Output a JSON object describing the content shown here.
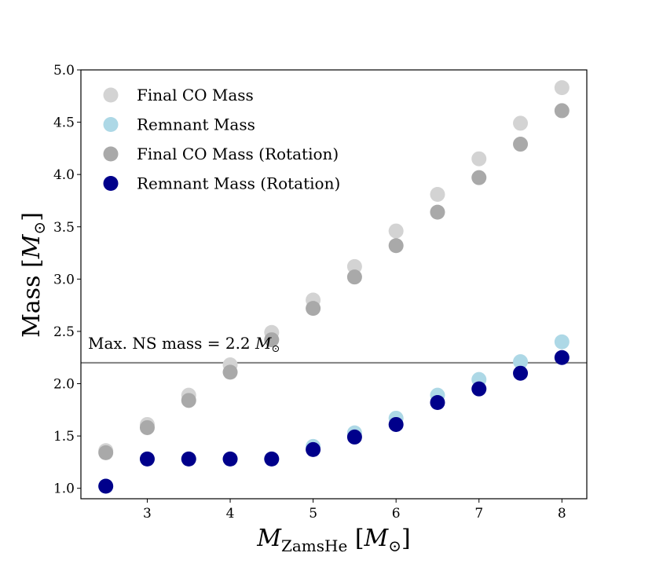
{
  "chart_data": {
    "type": "scatter",
    "xlabel": {
      "symbol": "M",
      "sub": "ZamsHe",
      "unit_open": " [",
      "unit_symbol": "M",
      "unit_sub": "⊙",
      "unit_close": "]"
    },
    "ylabel": {
      "text": "Mass [",
      "symbol": "M",
      "sub": "⊙",
      "close": "]"
    },
    "xlim": [
      2.2,
      8.3
    ],
    "ylim": [
      0.9,
      5.0
    ],
    "xticks": [
      3,
      4,
      5,
      6,
      7,
      8
    ],
    "xtick_labels": [
      "3",
      "4",
      "5",
      "6",
      "7",
      "8"
    ],
    "yticks": [
      1.0,
      1.5,
      2.0,
      2.5,
      3.0,
      3.5,
      4.0,
      4.5,
      5.0
    ],
    "ytick_labels": [
      "1.0",
      "1.5",
      "2.0",
      "2.5",
      "3.0",
      "3.5",
      "4.0",
      "4.5",
      "5.0"
    ],
    "grid": false,
    "legend_position": "top-left",
    "hline": {
      "y": 2.2,
      "color": "#808080",
      "label_prefix": "Max. NS mass = 2.2 ",
      "label_symbol": "M",
      "label_sub": "⊙"
    },
    "x": [
      2.5,
      3.0,
      3.5,
      4.0,
      4.5,
      5.0,
      5.5,
      6.0,
      6.5,
      7.0,
      7.5,
      8.0
    ],
    "series": [
      {
        "name": "Final CO Mass",
        "color": "#d3d3d3",
        "values": [
          1.36,
          1.61,
          1.89,
          2.18,
          2.49,
          2.8,
          3.12,
          3.46,
          3.81,
          4.15,
          4.49,
          4.83
        ]
      },
      {
        "name": "Remnant Mass",
        "color": "#add8e6",
        "values": [
          1.02,
          1.28,
          1.28,
          1.28,
          1.28,
          1.4,
          1.53,
          1.67,
          1.89,
          2.04,
          2.21,
          2.4
        ]
      },
      {
        "name": "Final CO Mass (Rotation)",
        "color": "#a9a9a9",
        "values": [
          1.34,
          1.58,
          1.84,
          2.11,
          2.42,
          2.72,
          3.02,
          3.32,
          3.64,
          3.97,
          4.29,
          4.61
        ]
      },
      {
        "name": "Remnant Mass (Rotation)",
        "color": "#00008b",
        "values": [
          1.02,
          1.28,
          1.28,
          1.28,
          1.28,
          1.37,
          1.49,
          1.61,
          1.82,
          1.95,
          2.1,
          2.25
        ]
      }
    ]
  }
}
